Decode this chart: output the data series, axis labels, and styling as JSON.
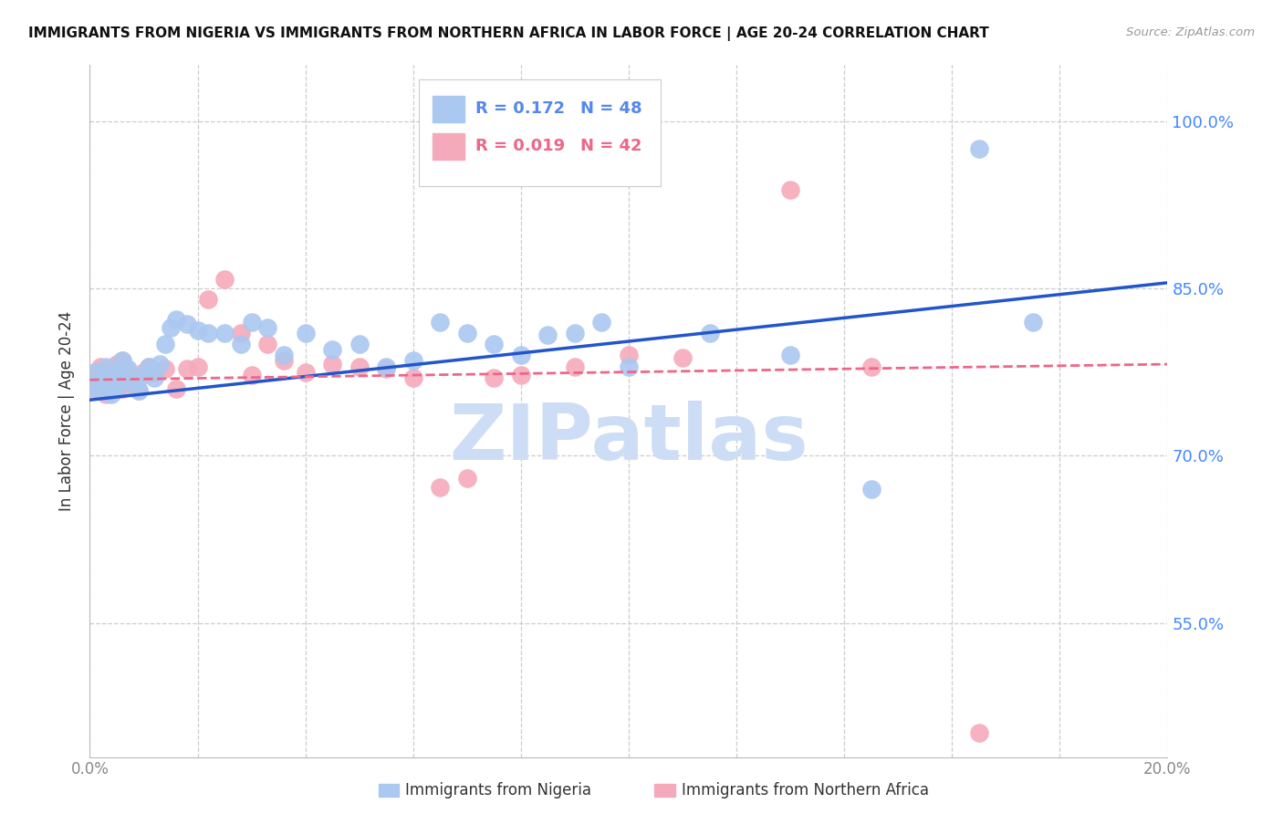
{
  "title": "IMMIGRANTS FROM NIGERIA VS IMMIGRANTS FROM NORTHERN AFRICA IN LABOR FORCE | AGE 20-24 CORRELATION CHART",
  "source": "Source: ZipAtlas.com",
  "ylabel": "In Labor Force | Age 20-24",
  "xlim": [
    0.0,
    0.2
  ],
  "ylim": [
    0.43,
    1.05
  ],
  "xticks": [
    0.0,
    0.02,
    0.04,
    0.06,
    0.08,
    0.1,
    0.12,
    0.14,
    0.16,
    0.18,
    0.2
  ],
  "xticklabels": [
    "0.0%",
    "",
    "",
    "",
    "",
    "",
    "",
    "",
    "",
    "",
    "20.0%"
  ],
  "yticks": [
    0.55,
    0.7,
    0.85,
    1.0
  ],
  "yticklabels": [
    "55.0%",
    "70.0%",
    "85.0%",
    "100.0%"
  ],
  "nigeria_color": "#aac8f0",
  "n_africa_color": "#f5aabb",
  "nigeria_line_color": "#2255cc",
  "n_africa_line_color": "#ee6688",
  "legend_color1": "#5588ee",
  "legend_color2": "#ee6688",
  "legend_r1": "R = 0.172",
  "legend_n1": "N = 48",
  "legend_r2": "R = 0.019",
  "legend_n2": "N = 42",
  "watermark": "ZIPatlas",
  "watermark_color": "#ccddf5",
  "label_nigeria": "Immigrants from Nigeria",
  "label_n_africa": "Immigrants from Northern Africa",
  "nigeria_x": [
    0.001,
    0.001,
    0.002,
    0.002,
    0.003,
    0.003,
    0.004,
    0.004,
    0.005,
    0.005,
    0.006,
    0.006,
    0.007,
    0.008,
    0.009,
    0.01,
    0.011,
    0.012,
    0.013,
    0.014,
    0.015,
    0.016,
    0.018,
    0.02,
    0.022,
    0.025,
    0.028,
    0.03,
    0.033,
    0.036,
    0.04,
    0.045,
    0.05,
    0.055,
    0.06,
    0.065,
    0.07,
    0.075,
    0.08,
    0.085,
    0.09,
    0.095,
    0.1,
    0.115,
    0.13,
    0.145,
    0.165,
    0.175
  ],
  "nigeria_y": [
    0.775,
    0.762,
    0.77,
    0.758,
    0.78,
    0.765,
    0.772,
    0.755,
    0.775,
    0.76,
    0.785,
    0.768,
    0.778,
    0.765,
    0.758,
    0.772,
    0.78,
    0.77,
    0.782,
    0.8,
    0.815,
    0.822,
    0.818,
    0.812,
    0.81,
    0.81,
    0.8,
    0.82,
    0.815,
    0.79,
    0.81,
    0.795,
    0.8,
    0.78,
    0.785,
    0.82,
    0.81,
    0.8,
    0.79,
    0.808,
    0.81,
    0.82,
    0.78,
    0.81,
    0.79,
    0.67,
    0.975,
    0.82
  ],
  "n_africa_x": [
    0.001,
    0.001,
    0.002,
    0.002,
    0.003,
    0.003,
    0.004,
    0.005,
    0.005,
    0.006,
    0.006,
    0.007,
    0.008,
    0.009,
    0.01,
    0.011,
    0.012,
    0.014,
    0.016,
    0.018,
    0.02,
    0.022,
    0.025,
    0.028,
    0.03,
    0.033,
    0.036,
    0.04,
    0.045,
    0.05,
    0.055,
    0.06,
    0.065,
    0.07,
    0.075,
    0.08,
    0.09,
    0.1,
    0.11,
    0.13,
    0.145,
    0.165
  ],
  "n_africa_y": [
    0.775,
    0.76,
    0.78,
    0.762,
    0.77,
    0.755,
    0.775,
    0.768,
    0.782,
    0.76,
    0.785,
    0.775,
    0.765,
    0.758,
    0.775,
    0.78,
    0.775,
    0.778,
    0.76,
    0.778,
    0.78,
    0.84,
    0.858,
    0.81,
    0.772,
    0.8,
    0.785,
    0.775,
    0.782,
    0.78,
    0.778,
    0.77,
    0.672,
    0.68,
    0.77,
    0.772,
    0.78,
    0.79,
    0.788,
    0.938,
    0.78,
    0.452
  ]
}
